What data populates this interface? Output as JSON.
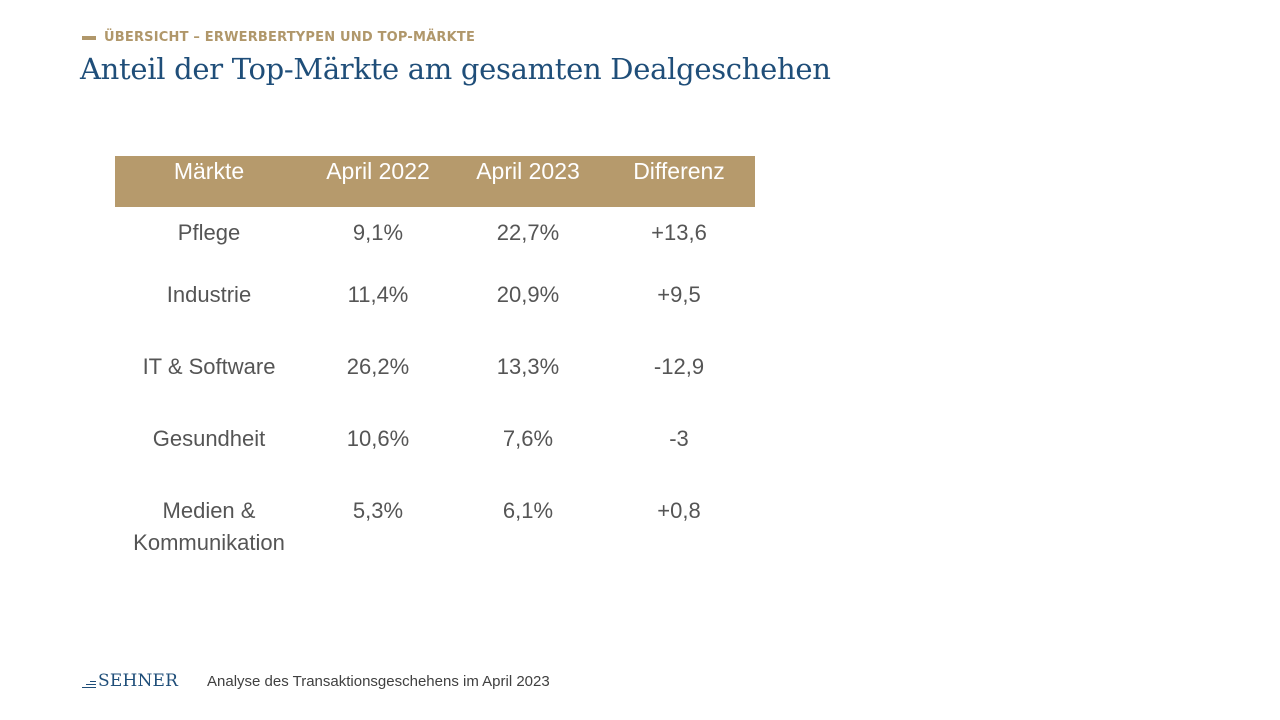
{
  "header": {
    "kicker": "ÜBERSICHT – ERWERBERTYPEN UND TOP-MÄRKTE",
    "title": "Anteil der Top-Märkte am gesamten Dealgeschehen",
    "accent_color": "#b0976a",
    "title_color": "#1f4e79"
  },
  "table": {
    "header_color": "#b69a6c",
    "columns": [
      "Märkte",
      "April 2022",
      "April 2023",
      "Differenz"
    ],
    "rows": [
      {
        "market": "Pflege",
        "april_2022": "9,1%",
        "april_2023": "22,7%",
        "differenz": "+13,6"
      },
      {
        "market": "Industrie",
        "april_2022": "11,4%",
        "april_2023": "20,9%",
        "differenz": "+9,5"
      },
      {
        "market": "IT & Software",
        "april_2022": "26,2%",
        "april_2023": "13,3%",
        "differenz": "-12,9"
      },
      {
        "market": "Gesundheit",
        "april_2022": "10,6%",
        "april_2023": "7,6%",
        "differenz": "-3"
      },
      {
        "market_line1": "Medien &",
        "market_line2": "Kommunikation",
        "april_2022": "5,3%",
        "april_2023": "6,1%",
        "differenz": "+0,8"
      }
    ]
  },
  "footer": {
    "logo_text": "SEHNER",
    "text": "Analyse des Transaktionsgeschehens im April 2023"
  }
}
